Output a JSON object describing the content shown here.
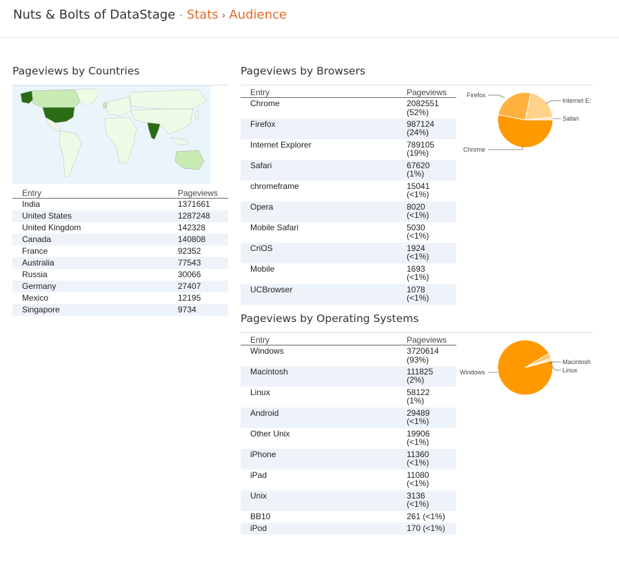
{
  "breadcrumb": {
    "site": "Nuts & Bolts of DataStage",
    "separator": "·",
    "stats": "Stats",
    "chevron": "›",
    "current": "Audience"
  },
  "countries": {
    "title": "Pageviews by Countries",
    "col_entry": "Entry",
    "col_pageviews": "Pageviews",
    "rows": [
      {
        "entry": "India",
        "pageviews": "1371661"
      },
      {
        "entry": "United States",
        "pageviews": "1287248"
      },
      {
        "entry": "United Kingdom",
        "pageviews": "142328"
      },
      {
        "entry": "Canada",
        "pageviews": "140808"
      },
      {
        "entry": "France",
        "pageviews": "92352"
      },
      {
        "entry": "Australia",
        "pageviews": "77543"
      },
      {
        "entry": "Russia",
        "pageviews": "30066"
      },
      {
        "entry": "Germany",
        "pageviews": "27407"
      },
      {
        "entry": "Mexico",
        "pageviews": "12195"
      },
      {
        "entry": "Singapore",
        "pageviews": "9734"
      }
    ]
  },
  "browsers": {
    "title": "Pageviews by Browsers",
    "col_entry": "Entry",
    "col_pageviews": "Pageviews",
    "rows": [
      {
        "entry": "Chrome",
        "pageviews": "2082551",
        "pct": "(52%)"
      },
      {
        "entry": "Firefox",
        "pageviews": "987124",
        "pct": "(24%)"
      },
      {
        "entry": "Internet Explorer",
        "pageviews": "789105",
        "pct": "(19%)"
      },
      {
        "entry": "Safari",
        "pageviews": "67620",
        "pct": "(1%)"
      },
      {
        "entry": "chromeframe",
        "pageviews": "15041",
        "pct": "(<1%)"
      },
      {
        "entry": "Opera",
        "pageviews": "8020",
        "pct": "(<1%)"
      },
      {
        "entry": "Mobile Safari",
        "pageviews": "5030",
        "pct": "(<1%)"
      },
      {
        "entry": "CriOS",
        "pageviews": "1924",
        "pct": "(<1%)"
      },
      {
        "entry": "Mobile",
        "pageviews": "1693",
        "pct": "(<1%)"
      },
      {
        "entry": "UCBrowser",
        "pageviews": "1078",
        "pct": "(<1%)"
      }
    ],
    "pie": {
      "labels": {
        "firefox": "Firefox",
        "ie": "Internet E:",
        "safari": "Safari",
        "chrome": "Chrome"
      },
      "slices": [
        {
          "name": "Chrome",
          "value": 2082551,
          "color": "#ff9900"
        },
        {
          "name": "Firefox",
          "value": 987124,
          "color": "#ffb13d"
        },
        {
          "name": "Internet Explorer",
          "value": 789105,
          "color": "#ffd18a"
        },
        {
          "name": "Safari",
          "value": 67620,
          "color": "#ffe5bd"
        }
      ]
    }
  },
  "os": {
    "title": "Pageviews by Operating Systems",
    "col_entry": "Entry",
    "col_pageviews": "Pageviews",
    "rows": [
      {
        "entry": "Windows",
        "pageviews": "3720614",
        "pct": "(93%)"
      },
      {
        "entry": "Macintosh",
        "pageviews": "111825",
        "pct": "(2%)"
      },
      {
        "entry": "Linux",
        "pageviews": "58122",
        "pct": "(1%)"
      },
      {
        "entry": "Android",
        "pageviews": "29489",
        "pct": "(<1%)"
      },
      {
        "entry": "Other Unix",
        "pageviews": "19906",
        "pct": "(<1%)"
      },
      {
        "entry": "iPhone",
        "pageviews": "11360",
        "pct": "(<1%)"
      },
      {
        "entry": "iPad",
        "pageviews": "11080",
        "pct": "(<1%)"
      },
      {
        "entry": "Unix",
        "pageviews": "3136",
        "pct": "(<1%)"
      }
    ],
    "rows_single": [
      {
        "entry": "BB10",
        "value": "261 (<1%)"
      },
      {
        "entry": "iPod",
        "value": "170 (<1%)"
      }
    ],
    "pie": {
      "labels": {
        "windows": "Windows",
        "mac": "Macintosh",
        "linux": "Linux"
      },
      "slices": [
        {
          "name": "Windows",
          "value": 3720614,
          "color": "#ff9900"
        },
        {
          "name": "Macintosh",
          "value": 111825,
          "color": "#ffc266"
        },
        {
          "name": "Linux",
          "value": 58122,
          "color": "#ffe0b0"
        }
      ]
    }
  },
  "map_colors": {
    "high": "#2a6b13",
    "mid": "#c8ebb4",
    "low": "#eefae6",
    "ocean": "#eaf5fb"
  }
}
